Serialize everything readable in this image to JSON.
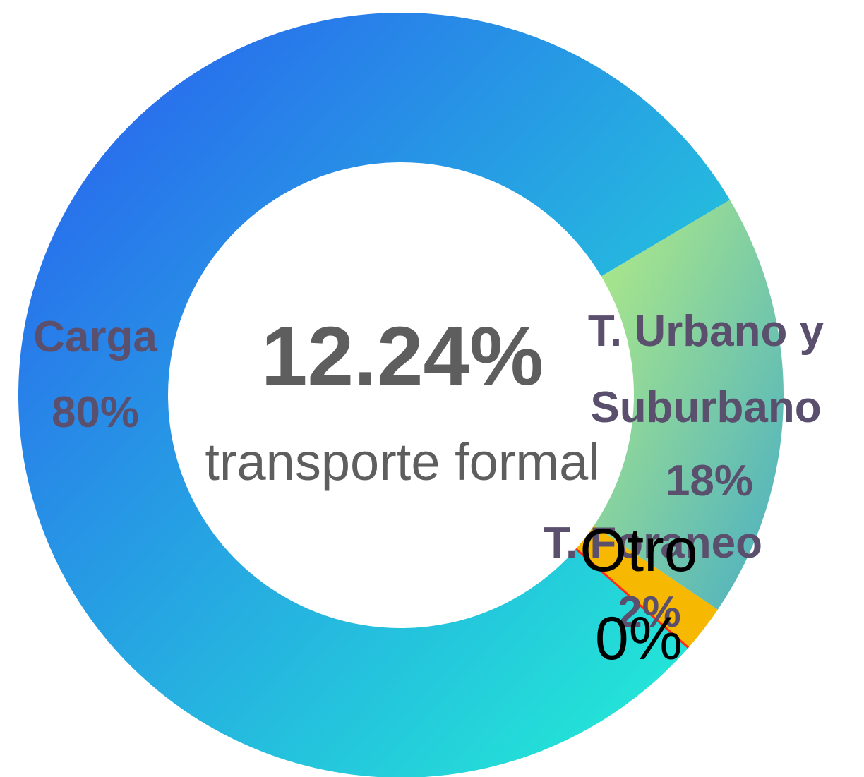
{
  "chart_data": {
    "type": "pie",
    "center_text": "12.24%",
    "center_subtitle": "transporte formal",
    "categories": [
      "Carga",
      "T. Urbano y Suburbano",
      "T. Foraneo",
      "Otro"
    ],
    "values": [
      80,
      18,
      2,
      0
    ],
    "value_labels": [
      "80%",
      "18%",
      "2%",
      "0%"
    ],
    "colors": [
      [
        "#2a5af0",
        "#22f4d4"
      ],
      [
        "#b4ec84",
        "#48aec4"
      ],
      [
        "#f6b800",
        "#f6b800"
      ],
      [
        "#ff2a1a",
        "#ff2a1a"
      ]
    ]
  }
}
